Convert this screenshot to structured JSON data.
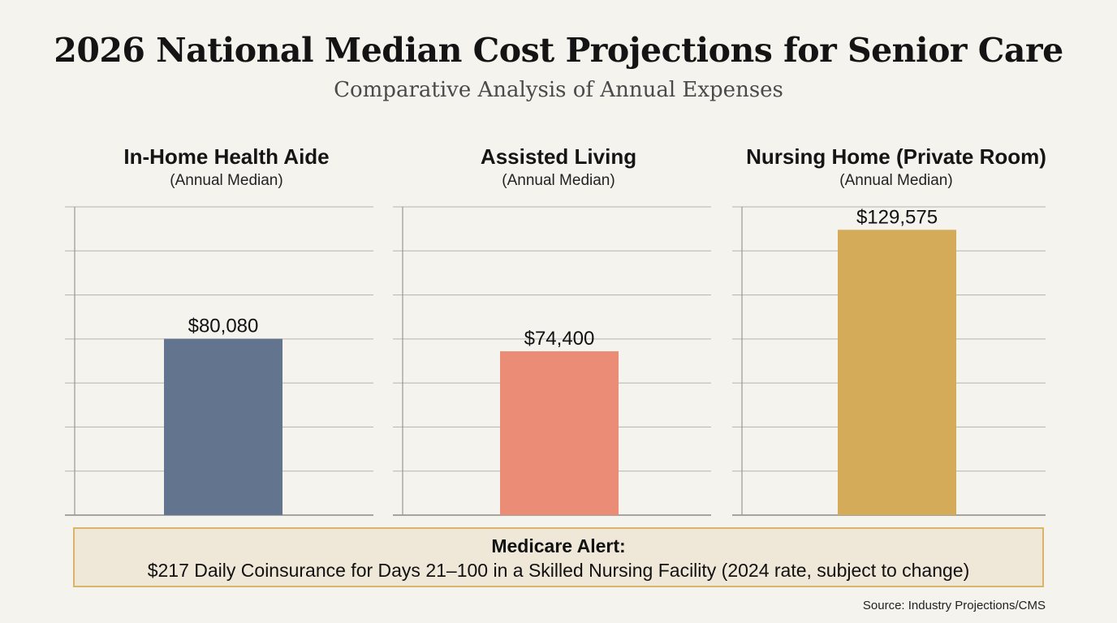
{
  "header": {
    "title": "2026 National Median Cost Projections for Senior Care",
    "subtitle": "Comparative Analysis of Annual Expenses"
  },
  "chart_data": [
    {
      "type": "bar",
      "title": "In-Home Health Aide",
      "subtitle": "(Annual Median)",
      "categories": [
        "In-Home Health Aide"
      ],
      "values": [
        80080
      ],
      "data_labels": [
        "$80,080"
      ],
      "ylim": [
        0,
        140000
      ],
      "grid": true,
      "color": "#63758e"
    },
    {
      "type": "bar",
      "title": "Assisted Living",
      "subtitle": "(Annual Median)",
      "categories": [
        "Assisted Living"
      ],
      "values": [
        74400
      ],
      "data_labels": [
        "$74,400"
      ],
      "ylim": [
        0,
        140000
      ],
      "grid": true,
      "color": "#eb8c76"
    },
    {
      "type": "bar",
      "title": "Nursing Home (Private Room)",
      "subtitle": "(Annual Median)",
      "categories": [
        "Nursing Home (Private Room)"
      ],
      "values": [
        129575
      ],
      "data_labels": [
        "$129,575"
      ],
      "ylim": [
        0,
        140000
      ],
      "grid": true,
      "color": "#d4ab59"
    }
  ],
  "alert": {
    "title": "Medicare Alert:",
    "text": "$217 Daily Coinsurance for Days 21–100 in a Skilled Nursing Facility (2024 rate, subject to change)"
  },
  "footer": {
    "source": "Source: Industry Projections/CMS"
  }
}
